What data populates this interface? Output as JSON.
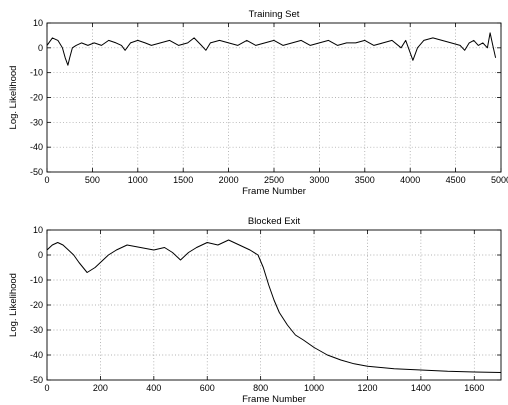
{
  "chart_data": [
    {
      "type": "line",
      "title": "Training Set",
      "xlabel": "Frame Number",
      "ylabel": "Log. Likelihood",
      "xlim": [
        0,
        5000
      ],
      "ylim": [
        -50,
        10
      ],
      "xticks": [
        0,
        500,
        1000,
        1500,
        2000,
        2500,
        3000,
        3500,
        4000,
        4500,
        5000
      ],
      "yticks": [
        -50,
        -40,
        -30,
        -20,
        -10,
        0,
        10
      ],
      "grid": true,
      "series": [
        {
          "x": [
            0,
            60,
            120,
            170,
            200,
            230,
            250,
            280,
            320,
            380,
            450,
            520,
            600,
            680,
            760,
            820,
            860,
            920,
            1000,
            1080,
            1150,
            1250,
            1350,
            1450,
            1550,
            1620,
            1700,
            1750,
            1800,
            1900,
            2000,
            2100,
            2200,
            2300,
            2400,
            2500,
            2600,
            2700,
            2800,
            2900,
            3000,
            3100,
            3200,
            3300,
            3400,
            3500,
            3600,
            3700,
            3800,
            3900,
            3950,
            4000,
            4030,
            4080,
            4150,
            4250,
            4350,
            4450,
            4550,
            4600,
            4650,
            4700,
            4750,
            4800,
            4850,
            4880,
            4910,
            4940
          ],
          "values": [
            1,
            4,
            3,
            0,
            -4,
            -7,
            -4,
            0,
            1,
            2,
            1,
            2,
            1,
            3,
            2,
            1,
            -1,
            2,
            3,
            2,
            1,
            2,
            3,
            1,
            2,
            4,
            1,
            -1,
            2,
            3,
            2,
            1,
            3,
            1,
            2,
            3,
            1,
            2,
            3,
            1,
            2,
            3,
            1,
            2,
            2,
            3,
            1,
            2,
            3,
            0,
            3,
            -2,
            -5,
            0,
            3,
            4,
            3,
            2,
            1,
            -1,
            2,
            3,
            1,
            2,
            0,
            6,
            1,
            -4
          ]
        }
      ]
    },
    {
      "type": "line",
      "title": "Blocked Exit",
      "xlabel": "Frame Number",
      "ylabel": "Log. Likelihood",
      "xlim": [
        0,
        1700
      ],
      "ylim": [
        -50,
        10
      ],
      "xticks": [
        0,
        200,
        400,
        600,
        800,
        1000,
        1200,
        1400,
        1600
      ],
      "yticks": [
        -50,
        -40,
        -30,
        -20,
        -10,
        0,
        10
      ],
      "grid": true,
      "series": [
        {
          "x": [
            0,
            20,
            40,
            60,
            80,
            100,
            120,
            150,
            180,
            200,
            230,
            260,
            300,
            350,
            400,
            440,
            470,
            500,
            530,
            560,
            600,
            640,
            680,
            720,
            760,
            790,
            810,
            830,
            850,
            870,
            900,
            930,
            960,
            1000,
            1050,
            1100,
            1150,
            1200,
            1250,
            1300,
            1400,
            1500,
            1600,
            1700
          ],
          "values": [
            2,
            4,
            5,
            4,
            2,
            0,
            -3,
            -7,
            -5,
            -3,
            0,
            2,
            4,
            3,
            2,
            3,
            1,
            -2,
            1,
            3,
            5,
            4,
            6,
            4,
            2,
            0,
            -5,
            -12,
            -18,
            -23,
            -28,
            -32,
            -34,
            -37,
            -40,
            -42,
            -43.5,
            -44.5,
            -45,
            -45.5,
            -46,
            -46.5,
            -46.8,
            -47
          ]
        }
      ]
    }
  ]
}
